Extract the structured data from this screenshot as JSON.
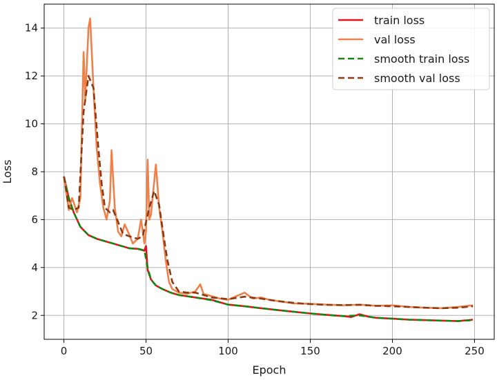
{
  "chart_data": {
    "type": "line",
    "xlabel": "Epoch",
    "ylabel": "Loss",
    "xlim": [
      -12,
      262
    ],
    "ylim": [
      1.0,
      15.0
    ],
    "xticks": [
      0,
      50,
      100,
      150,
      200,
      250
    ],
    "yticks": [
      2,
      4,
      6,
      8,
      10,
      12,
      14
    ],
    "grid": true,
    "legend_position": "top-right",
    "series": [
      {
        "name": "train loss",
        "color": "#e8111b",
        "dash": "solid",
        "points": [
          [
            0,
            7.8
          ],
          [
            3,
            6.9
          ],
          [
            6,
            6.3
          ],
          [
            10,
            5.7
          ],
          [
            15,
            5.35
          ],
          [
            20,
            5.2
          ],
          [
            25,
            5.1
          ],
          [
            30,
            5.0
          ],
          [
            35,
            4.9
          ],
          [
            40,
            4.8
          ],
          [
            45,
            4.78
          ],
          [
            49,
            4.7
          ],
          [
            50,
            4.9
          ],
          [
            51,
            3.9
          ],
          [
            53,
            3.5
          ],
          [
            56,
            3.25
          ],
          [
            60,
            3.1
          ],
          [
            65,
            2.95
          ],
          [
            70,
            2.85
          ],
          [
            80,
            2.75
          ],
          [
            90,
            2.65
          ],
          [
            100,
            2.45
          ],
          [
            110,
            2.38
          ],
          [
            120,
            2.3
          ],
          [
            130,
            2.22
          ],
          [
            140,
            2.15
          ],
          [
            150,
            2.08
          ],
          [
            160,
            2.02
          ],
          [
            170,
            1.97
          ],
          [
            175,
            1.93
          ],
          [
            180,
            2.05
          ],
          [
            185,
            1.95
          ],
          [
            190,
            1.9
          ],
          [
            200,
            1.86
          ],
          [
            210,
            1.82
          ],
          [
            220,
            1.8
          ],
          [
            230,
            1.78
          ],
          [
            240,
            1.76
          ],
          [
            249,
            1.82
          ]
        ]
      },
      {
        "name": "val loss",
        "color": "#f0804a",
        "dash": "solid",
        "points": [
          [
            0,
            7.8
          ],
          [
            3,
            6.4
          ],
          [
            5,
            6.9
          ],
          [
            8,
            6.3
          ],
          [
            10,
            6.9
          ],
          [
            12,
            13.0
          ],
          [
            13,
            11.0
          ],
          [
            15,
            14.0
          ],
          [
            16,
            14.4
          ],
          [
            18,
            11.5
          ],
          [
            20,
            9.0
          ],
          [
            22,
            7.5
          ],
          [
            24,
            6.5
          ],
          [
            26,
            6.0
          ],
          [
            28,
            6.8
          ],
          [
            29,
            8.9
          ],
          [
            31,
            6.5
          ],
          [
            33,
            5.5
          ],
          [
            35,
            5.3
          ],
          [
            37,
            5.8
          ],
          [
            39,
            5.5
          ],
          [
            42,
            5.0
          ],
          [
            45,
            5.2
          ],
          [
            47,
            6.0
          ],
          [
            49,
            5.0
          ],
          [
            50,
            5.5
          ],
          [
            51,
            8.5
          ],
          [
            52,
            6.0
          ],
          [
            53,
            6.2
          ],
          [
            56,
            8.3
          ],
          [
            58,
            6.5
          ],
          [
            60,
            5.5
          ],
          [
            62,
            4.3
          ],
          [
            64,
            3.4
          ],
          [
            66,
            3.1
          ],
          [
            70,
            2.95
          ],
          [
            75,
            2.9
          ],
          [
            80,
            3.0
          ],
          [
            83,
            3.3
          ],
          [
            85,
            2.9
          ],
          [
            90,
            2.8
          ],
          [
            95,
            2.7
          ],
          [
            100,
            2.65
          ],
          [
            105,
            2.8
          ],
          [
            110,
            2.95
          ],
          [
            115,
            2.7
          ],
          [
            120,
            2.75
          ],
          [
            125,
            2.65
          ],
          [
            130,
            2.6
          ],
          [
            135,
            2.55
          ],
          [
            140,
            2.5
          ],
          [
            150,
            2.48
          ],
          [
            160,
            2.45
          ],
          [
            170,
            2.42
          ],
          [
            180,
            2.45
          ],
          [
            190,
            2.4
          ],
          [
            200,
            2.42
          ],
          [
            210,
            2.35
          ],
          [
            220,
            2.32
          ],
          [
            230,
            2.3
          ],
          [
            240,
            2.35
          ],
          [
            249,
            2.42
          ]
        ]
      },
      {
        "name": "smooth train loss",
        "color": "#14860f",
        "dash": "dashed",
        "points": [
          [
            0,
            7.8
          ],
          [
            3,
            6.9
          ],
          [
            6,
            6.3
          ],
          [
            10,
            5.7
          ],
          [
            15,
            5.35
          ],
          [
            20,
            5.2
          ],
          [
            25,
            5.1
          ],
          [
            30,
            5.0
          ],
          [
            35,
            4.9
          ],
          [
            40,
            4.8
          ],
          [
            45,
            4.78
          ],
          [
            49,
            4.72
          ],
          [
            51,
            4.0
          ],
          [
            53,
            3.5
          ],
          [
            56,
            3.25
          ],
          [
            60,
            3.1
          ],
          [
            65,
            2.95
          ],
          [
            70,
            2.85
          ],
          [
            80,
            2.75
          ],
          [
            90,
            2.63
          ],
          [
            100,
            2.45
          ],
          [
            110,
            2.38
          ],
          [
            120,
            2.3
          ],
          [
            130,
            2.22
          ],
          [
            140,
            2.15
          ],
          [
            150,
            2.08
          ],
          [
            160,
            2.02
          ],
          [
            170,
            1.97
          ],
          [
            180,
            2.0
          ],
          [
            190,
            1.9
          ],
          [
            200,
            1.86
          ],
          [
            210,
            1.82
          ],
          [
            220,
            1.8
          ],
          [
            230,
            1.78
          ],
          [
            240,
            1.76
          ],
          [
            249,
            1.8
          ]
        ]
      },
      {
        "name": "smooth val loss",
        "color": "#8b3a12",
        "dash": "dashed",
        "points": [
          [
            0,
            7.8
          ],
          [
            3,
            6.5
          ],
          [
            6,
            6.4
          ],
          [
            9,
            6.5
          ],
          [
            12,
            10.5
          ],
          [
            15,
            12.0
          ],
          [
            18,
            11.5
          ],
          [
            21,
            9.0
          ],
          [
            23,
            7.5
          ],
          [
            25,
            6.5
          ],
          [
            28,
            6.3
          ],
          [
            30,
            6.4
          ],
          [
            33,
            5.9
          ],
          [
            36,
            5.4
          ],
          [
            40,
            5.3
          ],
          [
            45,
            5.2
          ],
          [
            48,
            5.3
          ],
          [
            50,
            5.9
          ],
          [
            52,
            6.5
          ],
          [
            55,
            7.2
          ],
          [
            58,
            6.6
          ],
          [
            61,
            5.2
          ],
          [
            63,
            4.3
          ],
          [
            66,
            3.4
          ],
          [
            70,
            3.0
          ],
          [
            75,
            2.95
          ],
          [
            80,
            2.95
          ],
          [
            85,
            2.85
          ],
          [
            90,
            2.75
          ],
          [
            100,
            2.68
          ],
          [
            110,
            2.78
          ],
          [
            120,
            2.7
          ],
          [
            130,
            2.6
          ],
          [
            140,
            2.52
          ],
          [
            150,
            2.47
          ],
          [
            160,
            2.44
          ],
          [
            170,
            2.43
          ],
          [
            180,
            2.44
          ],
          [
            190,
            2.4
          ],
          [
            200,
            2.38
          ],
          [
            210,
            2.35
          ],
          [
            220,
            2.32
          ],
          [
            230,
            2.3
          ],
          [
            240,
            2.32
          ],
          [
            249,
            2.38
          ]
        ]
      }
    ]
  }
}
